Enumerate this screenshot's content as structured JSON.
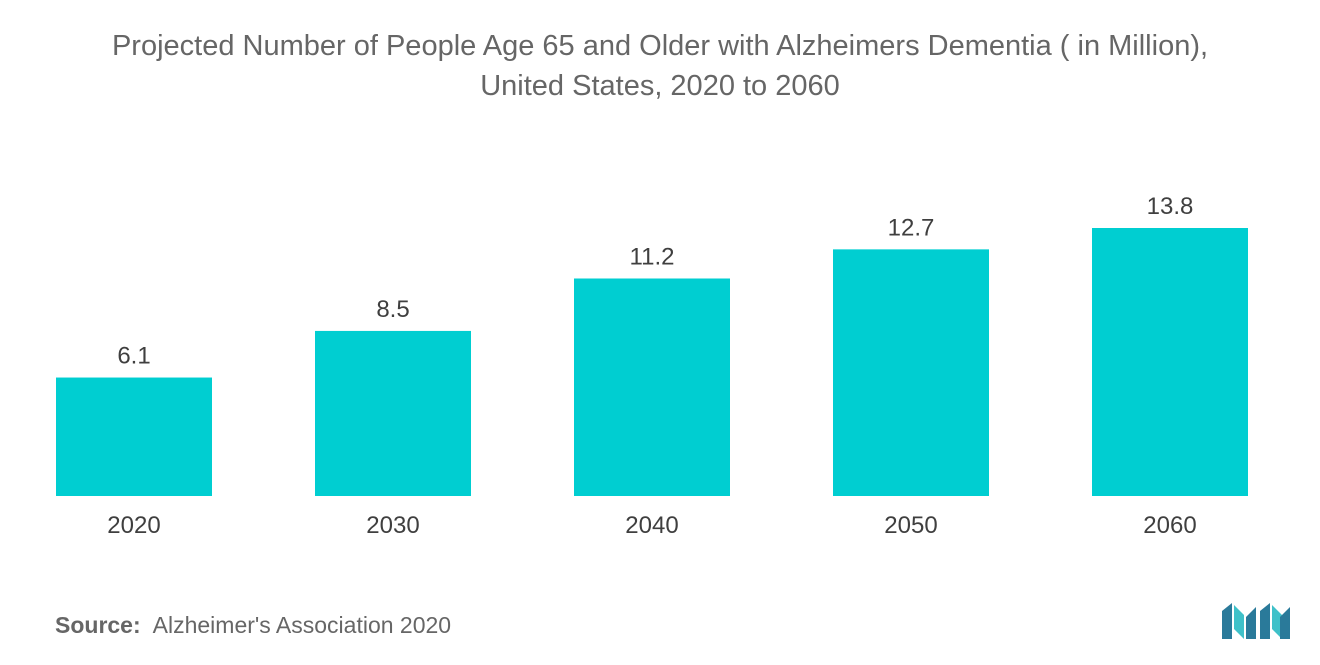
{
  "title_line1": "Projected Number of People Age 65 and Older with Alzheimers Dementia ( in Million),",
  "title_line2": "United States, 2020 to 2060",
  "source": {
    "label": "Source:",
    "text": "Alzheimer's Association 2020"
  },
  "logo": {
    "name": "mordor-intelligence-logo",
    "colors": [
      "#2a7a9a",
      "#3fc1c9"
    ]
  },
  "chart_data": {
    "type": "bar",
    "categories": [
      "2020",
      "2030",
      "2040",
      "2050",
      "2060"
    ],
    "values": [
      6.1,
      8.5,
      11.2,
      12.7,
      13.8
    ],
    "data_labels": [
      "6.1",
      "8.5",
      "11.2",
      "12.7",
      "13.8"
    ],
    "title": "Projected Number of People Age 65 and Older with Alzheimers Dementia ( in Million), United States, 2020 to 2060",
    "xlabel": "",
    "ylabel": "",
    "ylim": [
      0,
      13.8
    ],
    "grid": false,
    "legend": "none",
    "bar_color": "#00ced1"
  }
}
